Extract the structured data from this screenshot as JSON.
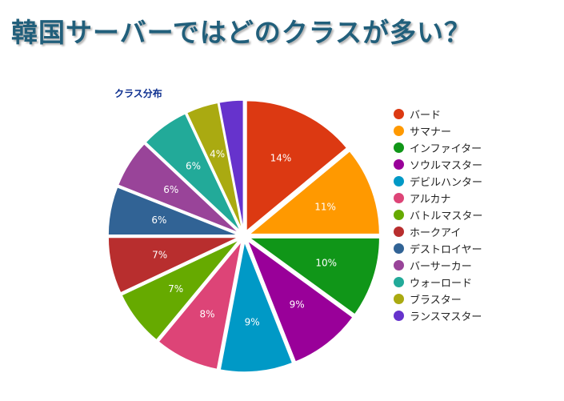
{
  "page": {
    "title": "韓国サーバーではどのクラスが多い？"
  },
  "chart_data": {
    "type": "pie",
    "title": "クラス分布",
    "unit": "%",
    "slices": [
      {
        "name": "バード",
        "value": 14,
        "label": "14%",
        "color": "#dc3912"
      },
      {
        "name": "サマナー",
        "value": 11,
        "label": "11%",
        "color": "#ff9900"
      },
      {
        "name": "インファイター",
        "value": 10,
        "label": "10%",
        "color": "#109618"
      },
      {
        "name": "ソウルマスター",
        "value": 9,
        "label": "9%",
        "color": "#990099"
      },
      {
        "name": "デビルハンター",
        "value": 9,
        "label": "9%",
        "color": "#0099c6"
      },
      {
        "name": "アルカナ",
        "value": 8,
        "label": "8%",
        "color": "#dd4477"
      },
      {
        "name": "バトルマスター",
        "value": 7,
        "label": "7%",
        "color": "#66aa00"
      },
      {
        "name": "ホークアイ",
        "value": 7,
        "label": "7%",
        "color": "#b82e2e"
      },
      {
        "name": "デストロイヤー",
        "value": 6,
        "label": "6%",
        "color": "#316395"
      },
      {
        "name": "バーサーカー",
        "value": 6,
        "label": "6%",
        "color": "#994499"
      },
      {
        "name": "ウォーロード",
        "value": 6,
        "label": "6%",
        "color": "#22aa99"
      },
      {
        "name": "ブラスター",
        "value": 4,
        "label": "4%",
        "color": "#aaaa11"
      },
      {
        "name": "ランスマスター",
        "value": 3,
        "label": "",
        "color": "#6633cc"
      }
    ],
    "legend_position": "right"
  }
}
